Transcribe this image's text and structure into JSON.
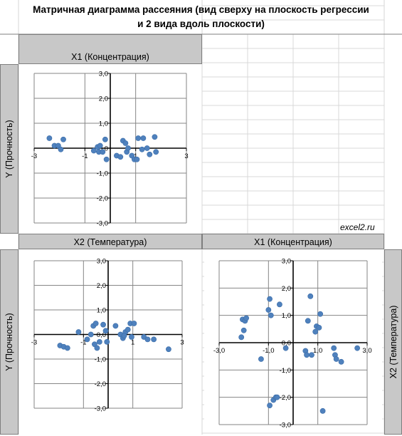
{
  "title": "Матричная диаграмма рассеяния (вид сверху на плоскость регрессии\nи 2 вида вдоль плоскости)",
  "headers": {
    "top": "X1 (Концентрация)",
    "bottom_left": "X2 (Температура)",
    "bottom_right": "X1 (Концентрация)",
    "side_top": "Y (Прочность)",
    "side_bottom": "Y (Прочность)",
    "side_right": "X2 (Температура)"
  },
  "watermark": "excel2.ru",
  "colors": {
    "marker": "#4f81bd",
    "axis": "#000000",
    "grid": "#868686",
    "header_bg": "#c8c8c8"
  },
  "chart_data": [
    {
      "type": "scatter",
      "name": "X1 vs Y",
      "xlim": [
        -3,
        3
      ],
      "ylim": [
        -3,
        3
      ],
      "x_ticks": [
        "-3",
        "-1",
        "1",
        "3"
      ],
      "x_tick_values": [
        -3,
        -1,
        1,
        3
      ],
      "y_ticks": [
        "3,0",
        "2,0",
        "1,0",
        "0,0",
        "-1,0",
        "-2,0",
        "-3,0"
      ],
      "y_tick_values": [
        3,
        2,
        1,
        0,
        -1,
        -2,
        -3
      ],
      "points": [
        [
          -2.4,
          0.4
        ],
        [
          -2.2,
          0.1
        ],
        [
          -2.05,
          0.1
        ],
        [
          -1.95,
          -0.05
        ],
        [
          -1.85,
          0.35
        ],
        [
          -0.65,
          -0.1
        ],
        [
          -0.5,
          0.05
        ],
        [
          -0.45,
          -0.15
        ],
        [
          -0.4,
          0.1
        ],
        [
          -0.3,
          -0.15
        ],
        [
          -0.2,
          0.35
        ],
        [
          -0.15,
          -0.45
        ],
        [
          0.25,
          -0.3
        ],
        [
          0.5,
          0.3
        ],
        [
          0.6,
          0.2
        ],
        [
          0.65,
          -0.15
        ],
        [
          0.7,
          0.0
        ],
        [
          0.85,
          -0.3
        ],
        [
          0.95,
          -0.45
        ],
        [
          1.05,
          -0.45
        ],
        [
          1.1,
          0.4
        ],
        [
          1.25,
          -0.05
        ],
        [
          1.3,
          0.4
        ],
        [
          1.45,
          0.0
        ],
        [
          1.55,
          -0.25
        ],
        [
          1.75,
          0.45
        ],
        [
          1.8,
          -0.15
        ],
        [
          0.4,
          -0.35
        ]
      ]
    },
    {
      "type": "scatter",
      "name": "X2 vs Y",
      "xlim": [
        -3,
        3
      ],
      "ylim": [
        -3,
        3
      ],
      "x_ticks": [
        "-3",
        "-1",
        "1",
        "3"
      ],
      "x_tick_values": [
        -3,
        -1,
        1,
        3
      ],
      "y_ticks": [
        "3,0",
        "2,0",
        "1,0",
        "0,0",
        "-1,0",
        "-2,0",
        "-3,0"
      ],
      "y_tick_values": [
        3,
        2,
        1,
        0,
        -1,
        -2,
        -3
      ],
      "points": [
        [
          -1.95,
          -0.45
        ],
        [
          -1.8,
          -0.5
        ],
        [
          -1.65,
          -0.55
        ],
        [
          -1.2,
          0.1
        ],
        [
          -0.85,
          -0.2
        ],
        [
          -0.7,
          0.0
        ],
        [
          -0.6,
          0.35
        ],
        [
          -0.55,
          -0.4
        ],
        [
          -0.5,
          0.45
        ],
        [
          -0.45,
          -0.55
        ],
        [
          -0.2,
          0.4
        ],
        [
          -0.1,
          0.15
        ],
        [
          -0.05,
          -0.3
        ],
        [
          0.3,
          0.35
        ],
        [
          0.5,
          0.0
        ],
        [
          0.6,
          -0.15
        ],
        [
          0.7,
          0.1
        ],
        [
          0.8,
          0.2
        ],
        [
          0.9,
          0.45
        ],
        [
          0.95,
          -0.1
        ],
        [
          1.05,
          0.45
        ],
        [
          1.45,
          -0.1
        ],
        [
          1.6,
          -0.2
        ],
        [
          1.85,
          -0.2
        ],
        [
          2.45,
          -0.6
        ],
        [
          0.65,
          -0.05
        ],
        [
          -0.35,
          -0.3
        ]
      ]
    },
    {
      "type": "scatter",
      "name": "X1 vs X2",
      "xlim": [
        -3,
        3
      ],
      "ylim": [
        -3,
        3
      ],
      "x_ticks": [
        "-3,0",
        "-1,0",
        "1,0",
        "3,0"
      ],
      "x_tick_values": [
        -3,
        -1,
        1,
        3
      ],
      "y_ticks": [
        "3,0",
        "2,0",
        "1,0",
        "0,0",
        "-1,0",
        "-2,0",
        "-3,0"
      ],
      "y_tick_values": [
        3,
        2,
        1,
        0,
        -1,
        -2,
        -3
      ],
      "points": [
        [
          -2.1,
          0.2
        ],
        [
          -2.05,
          0.85
        ],
        [
          -2.0,
          0.45
        ],
        [
          -1.95,
          0.8
        ],
        [
          -1.9,
          0.9
        ],
        [
          -1.3,
          -0.6
        ],
        [
          -1.0,
          1.2
        ],
        [
          -0.95,
          1.6
        ],
        [
          -0.9,
          1.0
        ],
        [
          -0.8,
          -2.1
        ],
        [
          -0.7,
          -2.0
        ],
        [
          -0.55,
          1.4
        ],
        [
          -0.3,
          -0.2
        ],
        [
          0.5,
          -0.3
        ],
        [
          0.55,
          -0.45
        ],
        [
          0.6,
          0.8
        ],
        [
          0.7,
          1.7
        ],
        [
          0.75,
          -0.45
        ],
        [
          0.9,
          0.4
        ],
        [
          0.95,
          0.6
        ],
        [
          1.05,
          0.55
        ],
        [
          1.1,
          1.05
        ],
        [
          1.2,
          -2.5
        ],
        [
          1.65,
          -0.2
        ],
        [
          1.7,
          -0.45
        ],
        [
          1.75,
          -0.6
        ],
        [
          1.95,
          -0.7
        ],
        [
          2.6,
          -0.2
        ],
        [
          -0.95,
          -2.3
        ],
        [
          -0.65,
          -2.0
        ]
      ]
    }
  ]
}
